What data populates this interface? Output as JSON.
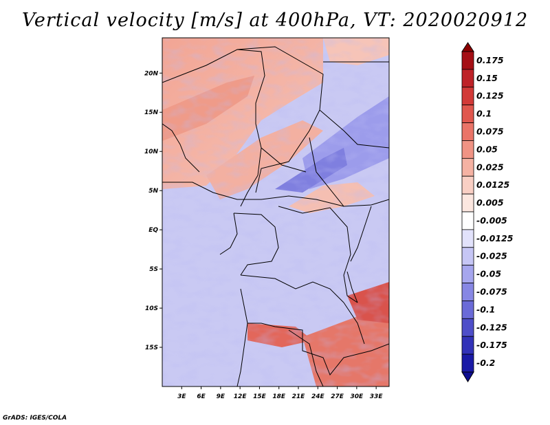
{
  "title": "Vertical velocity [m/s] at 400hPa, VT: 2020020912",
  "credit": "GrADS: IGES/COLA",
  "chart_data": {
    "type": "heatmap",
    "title": "Vertical velocity [m/s] at 400hPa, VT: 2020020912",
    "xlabel": "",
    "ylabel": "",
    "xlim": [
      0,
      35
    ],
    "ylim": [
      -20,
      24.5
    ],
    "x_ticks": [
      {
        "value": 3,
        "label": "3E"
      },
      {
        "value": 6,
        "label": "6E"
      },
      {
        "value": 9,
        "label": "9E"
      },
      {
        "value": 12,
        "label": "12E"
      },
      {
        "value": 15,
        "label": "15E"
      },
      {
        "value": 18,
        "label": "18E"
      },
      {
        "value": 21,
        "label": "21E"
      },
      {
        "value": 24,
        "label": "24E"
      },
      {
        "value": 27,
        "label": "27E"
      },
      {
        "value": 30,
        "label": "30E"
      },
      {
        "value": 33,
        "label": "33E"
      }
    ],
    "y_ticks": [
      {
        "value": 20,
        "label": "20N"
      },
      {
        "value": 15,
        "label": "15N"
      },
      {
        "value": 10,
        "label": "10N"
      },
      {
        "value": 5,
        "label": "5N"
      },
      {
        "value": 0,
        "label": "EQ"
      },
      {
        "value": -5,
        "label": "5S"
      },
      {
        "value": -10,
        "label": "10S"
      },
      {
        "value": -15,
        "label": "15S"
      }
    ],
    "colorbar": {
      "levels": [
        {
          "label": "0.175",
          "color": "#a50f15"
        },
        {
          "label": "0.15",
          "color": "#be2228"
        },
        {
          "label": "0.125",
          "color": "#d23a38"
        },
        {
          "label": "0.1",
          "color": "#e0574e"
        },
        {
          "label": "0.075",
          "color": "#ea7468"
        },
        {
          "label": "0.05",
          "color": "#f09384"
        },
        {
          "label": "0.025",
          "color": "#f5b2a3"
        },
        {
          "label": "0.0125",
          "color": "#f9cfc4"
        },
        {
          "label": "0.005",
          "color": "#fce7e0"
        },
        {
          "label": "-0.005",
          "color": "#ffffff"
        },
        {
          "label": "-0.0125",
          "color": "#e2e2fb"
        },
        {
          "label": "-0.025",
          "color": "#c6c6f5"
        },
        {
          "label": "-0.05",
          "color": "#a6a6ee"
        },
        {
          "label": "-0.075",
          "color": "#8787e4"
        },
        {
          "label": "-0.1",
          "color": "#6b6bd8"
        },
        {
          "label": "-0.125",
          "color": "#4e4ec9"
        },
        {
          "label": "-0.175",
          "color": "#3232b8"
        },
        {
          "label": "-0.2",
          "color": "#1a1aa6"
        }
      ],
      "over_color": "#8b0000",
      "under_color": "#0d0d90"
    }
  }
}
